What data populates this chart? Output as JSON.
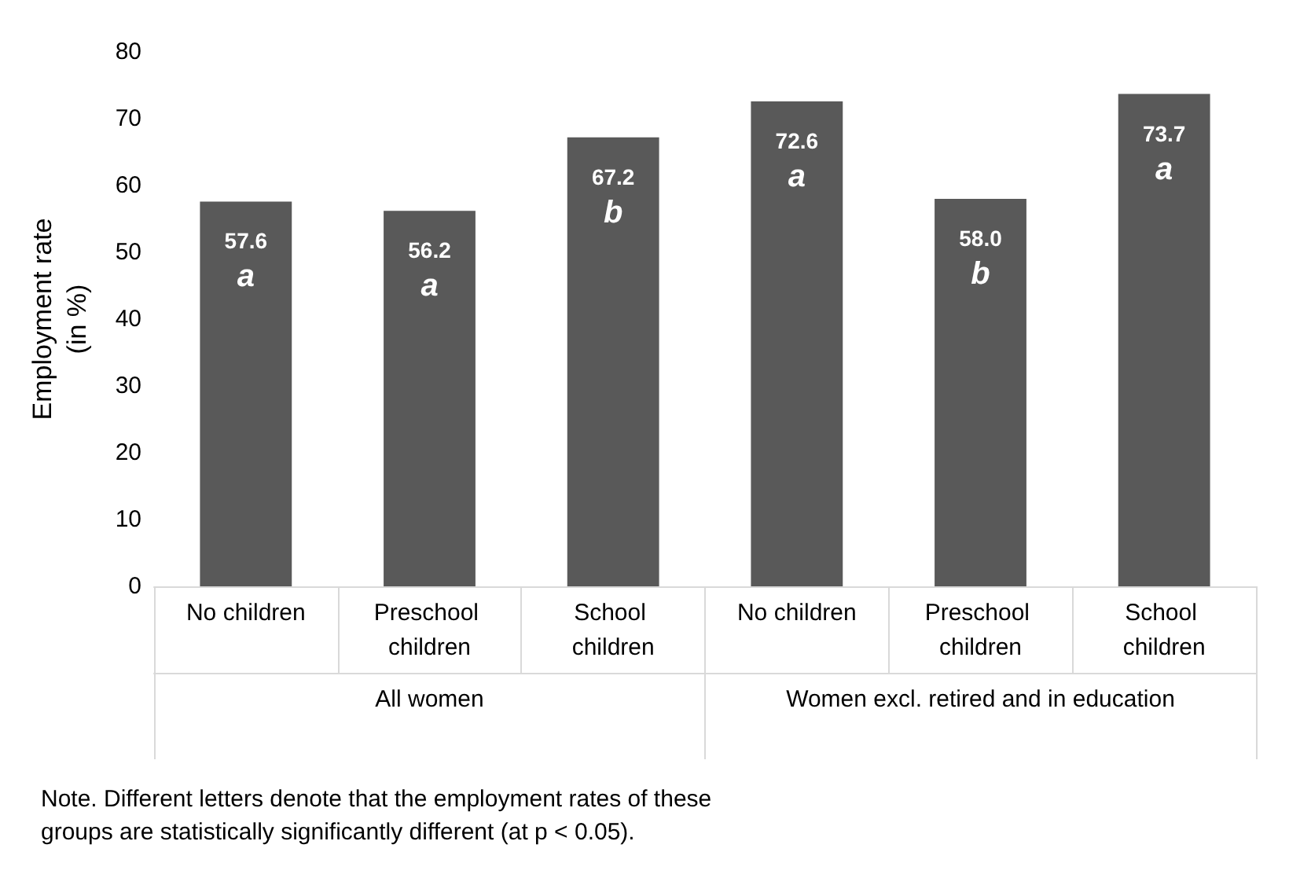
{
  "chart_data": {
    "type": "bar",
    "ylabel": "Employment rate\n(in %)",
    "categories": [
      "No children",
      "Preschool children",
      "School children",
      "No children",
      "Preschool children",
      "School children"
    ],
    "values": [
      57.6,
      56.2,
      67.2,
      72.6,
      58.0,
      73.7
    ],
    "value_labels": [
      "57.6\na",
      "56.2\na",
      "67.2\nb",
      "72.6\na",
      "58.0\nb",
      "73.7\na"
    ],
    "color": "#595959",
    "ylim": [
      0,
      80
    ],
    "yticks": [
      0,
      10,
      20,
      30,
      40,
      50,
      60,
      70,
      80
    ],
    "grid": false,
    "annotations": [
      "All women",
      "Women excl. retired and in education",
      "Note. Different letters denote that the employment rates of these groups are statistically significantly different (at p < 0.05)."
    ]
  }
}
